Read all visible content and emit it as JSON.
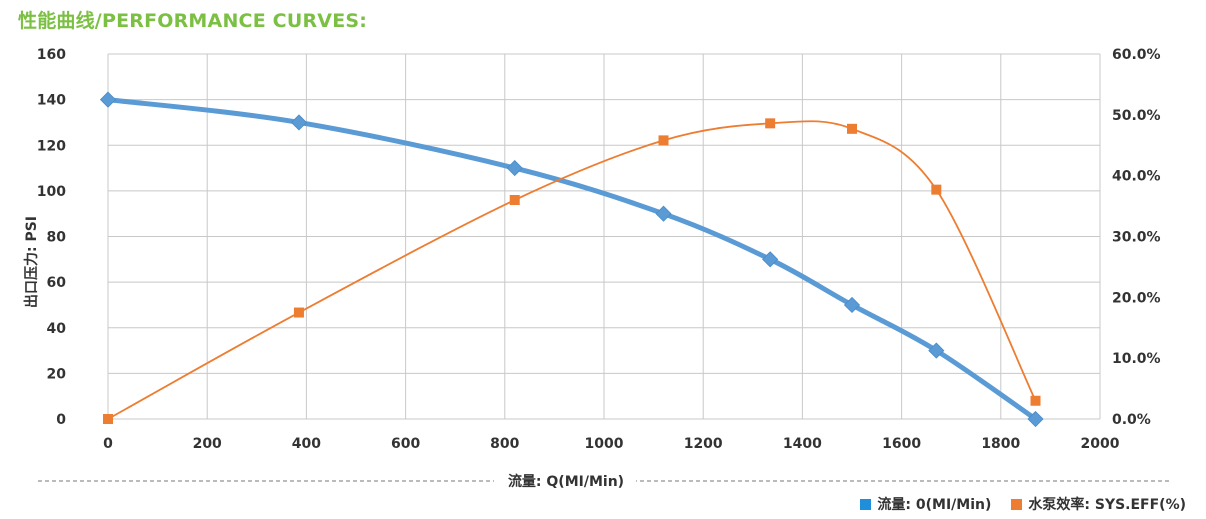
{
  "page_title": "性能曲线/PERFORMANCE CURVES:",
  "chart_data": {
    "type": "line",
    "xlabel": "流量: Q(MI/Min)",
    "ylabel_left": "出口压力: PSI",
    "x_ticks": [
      "0",
      "200",
      "400",
      "600",
      "800",
      "1000",
      "1200",
      "1400",
      "1600",
      "1800",
      "2000"
    ],
    "y_left_ticks": [
      "0",
      "20",
      "40",
      "60",
      "80",
      "100",
      "120",
      "140",
      "160"
    ],
    "y_right_ticks": [
      "0.0%",
      "10.0%",
      "20.0%",
      "30.0%",
      "40.0%",
      "50.0%",
      "60.0%"
    ],
    "xlim": [
      0,
      2000
    ],
    "ylim_left": [
      0,
      160
    ],
    "ylim_right": [
      0,
      60
    ],
    "grid": true,
    "legend_position": "bottom-right",
    "series": [
      {
        "name": "流量: 0(MI/Min)",
        "axis": "left",
        "color": "#5b9bd5",
        "marker": "diamond",
        "x": [
          0,
          385,
          820,
          1120,
          1335,
          1500,
          1670,
          1870
        ],
        "y": [
          140,
          130,
          110,
          90,
          70,
          50,
          30,
          0
        ]
      },
      {
        "name": "水泵效率: SYS.EFF(%)",
        "axis": "right",
        "color": "#ed7d31",
        "marker": "square",
        "x": [
          0,
          385,
          820,
          1120,
          1335,
          1500,
          1670,
          1870
        ],
        "y": [
          0,
          17.5,
          36,
          45.8,
          48.6,
          47.7,
          37.7,
          3
        ]
      }
    ]
  }
}
